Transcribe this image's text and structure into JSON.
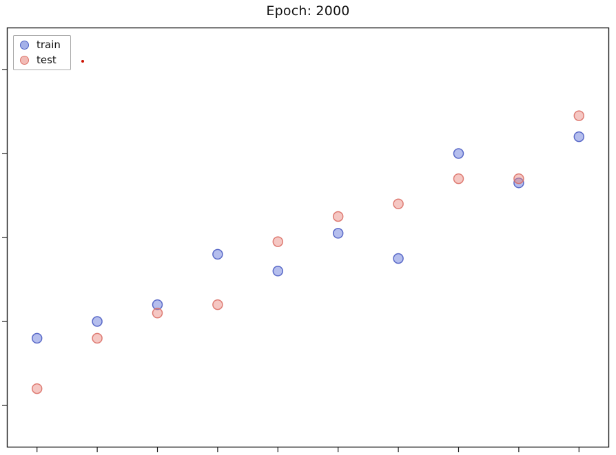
{
  "title": "Epoch: 2000",
  "legend": {
    "position": "upper left",
    "items": [
      {
        "label": "train"
      },
      {
        "label": "test"
      }
    ]
  },
  "chart_data": {
    "type": "scatter",
    "title": "Epoch: 2000",
    "xlabel": "",
    "ylabel": "",
    "xlim": [
      0.5,
      10.5
    ],
    "ylim": [
      0,
      1
    ],
    "x": [
      1,
      2,
      3,
      4,
      5,
      6,
      7,
      8,
      9,
      10
    ],
    "series": [
      {
        "name": "train",
        "fill": "#5a6fd6",
        "edge": "#4456c0",
        "y": [
          0.26,
          0.3,
          0.34,
          0.46,
          0.42,
          0.51,
          0.45,
          0.7,
          0.63,
          0.74
        ]
      },
      {
        "name": "test",
        "fill": "#e8837a",
        "edge": "#d96a60",
        "y": [
          0.14,
          0.26,
          0.32,
          0.34,
          0.49,
          0.55,
          0.58,
          0.64,
          0.64,
          0.79
        ]
      }
    ],
    "xticks": [
      1,
      2,
      3,
      4,
      5,
      6,
      7,
      8,
      9,
      10
    ],
    "yticks": [
      0.1,
      0.3,
      0.5,
      0.7,
      0.9
    ],
    "xtick_labels": [],
    "ytick_labels": [],
    "grid": false,
    "legend_position": "upper left",
    "marker_size": 7,
    "marker_alpha": 0.45,
    "frame_color": "#1a1a1a"
  }
}
